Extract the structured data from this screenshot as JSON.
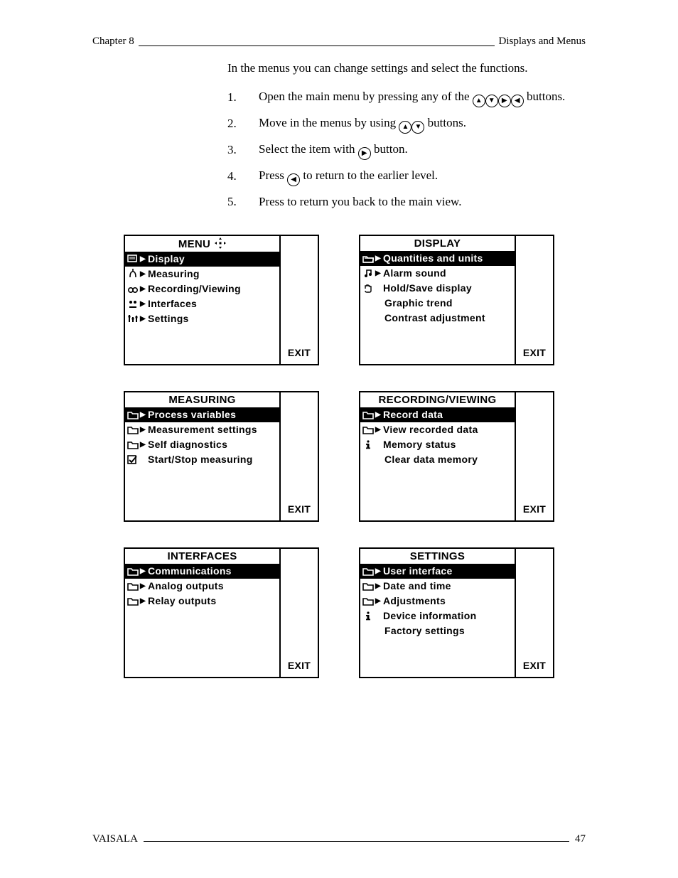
{
  "header": {
    "left": "Chapter 8",
    "right": "Displays and Menus"
  },
  "footer": {
    "left": "VAISALA",
    "page": "47"
  },
  "intro": "In the menus you can change settings and select the functions.",
  "steps": {
    "s1a": "Open the main menu by pressing any of the ",
    "s1b": " buttons.",
    "s2a": "Move in the menus by using ",
    "s2b": " buttons.",
    "s3a": "Select the item with ",
    "s3b": " button.",
    "s4a": "Press ",
    "s4b": " to return to the earlier level.",
    "s5": "Press          to return you back to the main view."
  },
  "nums": {
    "n1": "1.",
    "n2": "2.",
    "n3": "3.",
    "n4": "4.",
    "n5": "5."
  },
  "exit_label": "EXIT",
  "screens": {
    "menu": {
      "title": "MENU",
      "items": [
        {
          "label": "Display",
          "hl": true,
          "icon": "display",
          "arrow": true
        },
        {
          "label": "Measuring",
          "hl": false,
          "icon": "meas",
          "arrow": true
        },
        {
          "label": "Recording/Viewing",
          "hl": false,
          "icon": "rec",
          "arrow": true
        },
        {
          "label": "Interfaces",
          "hl": false,
          "icon": "iface",
          "arrow": true
        },
        {
          "label": "Settings",
          "hl": false,
          "icon": "set",
          "arrow": true
        }
      ]
    },
    "display": {
      "title": "DISPLAY",
      "items": [
        {
          "label": "Quantities  and  units",
          "hl": true,
          "icon": "folder-open",
          "arrow": true
        },
        {
          "label": "Alarm  sound",
          "hl": false,
          "icon": "note",
          "arrow": true
        },
        {
          "label": "Hold/Save  display",
          "hl": false,
          "icon": "hand",
          "arrow": false
        },
        {
          "label": "Graphic  trend",
          "hl": false,
          "icon": "",
          "arrow": false,
          "indent": true
        },
        {
          "label": "Contrast  adjustment",
          "hl": false,
          "icon": "",
          "arrow": false,
          "indent": true
        }
      ]
    },
    "measuring": {
      "title": "MEASURING",
      "items": [
        {
          "label": "Process  variables",
          "hl": true,
          "icon": "folder",
          "arrow": true
        },
        {
          "label": "Measurement  settings",
          "hl": false,
          "icon": "folder",
          "arrow": true
        },
        {
          "label": "Self  diagnostics",
          "hl": false,
          "icon": "folder",
          "arrow": true
        },
        {
          "label": "Start/Stop  measuring",
          "hl": false,
          "icon": "check",
          "arrow": false
        }
      ]
    },
    "recording": {
      "title": "RECORDING/VIEWING",
      "items": [
        {
          "label": "Record  data",
          "hl": true,
          "icon": "folder",
          "arrow": true
        },
        {
          "label": "View  recorded  data",
          "hl": false,
          "icon": "folder",
          "arrow": true
        },
        {
          "label": "Memory  status",
          "hl": false,
          "icon": "info",
          "arrow": false
        },
        {
          "label": "Clear  data  memory",
          "hl": false,
          "icon": "",
          "arrow": false,
          "indent": true
        }
      ]
    },
    "interfaces": {
      "title": "INTERFACES",
      "items": [
        {
          "label": "Communications",
          "hl": true,
          "icon": "folder",
          "arrow": true
        },
        {
          "label": "Analog  outputs",
          "hl": false,
          "icon": "folder",
          "arrow": true
        },
        {
          "label": "Relay  outputs",
          "hl": false,
          "icon": "folder",
          "arrow": true
        }
      ]
    },
    "settings": {
      "title": "SETTINGS",
      "items": [
        {
          "label": "User  interface",
          "hl": true,
          "icon": "folder",
          "arrow": true
        },
        {
          "label": "Date  and  time",
          "hl": false,
          "icon": "folder",
          "arrow": true
        },
        {
          "label": "Adjustments",
          "hl": false,
          "icon": "folder",
          "arrow": true
        },
        {
          "label": "Device  information",
          "hl": false,
          "icon": "info",
          "arrow": false
        },
        {
          "label": "Factory  settings",
          "hl": false,
          "icon": "",
          "arrow": false,
          "indent": true
        }
      ]
    }
  }
}
